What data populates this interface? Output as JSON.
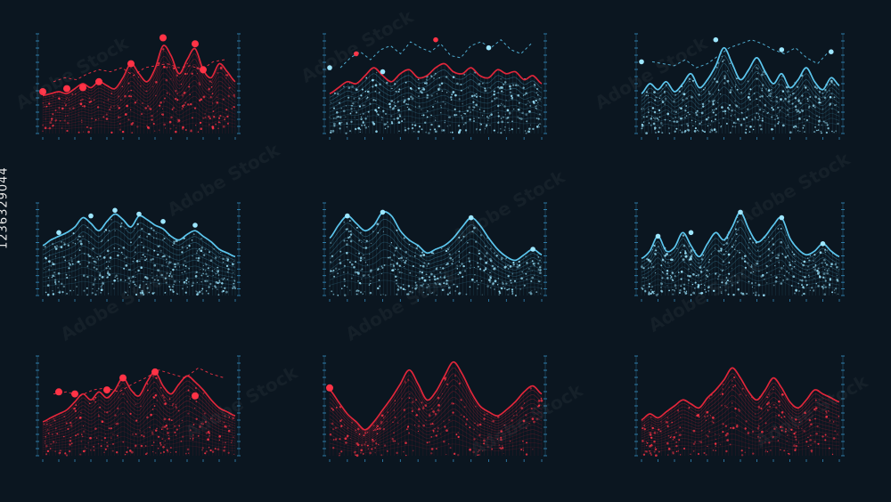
{
  "stock_id": "1236329044",
  "watermark_text": "Adobe Stock",
  "colors": {
    "background": "#0b1620",
    "red": "#e0263a",
    "red_dot": "#ff3346",
    "blue": "#5cc6ee",
    "blue_dot": "#9de6ff",
    "axis": "#3a9ad0"
  },
  "chart_data": [
    {
      "type": "area",
      "color": "red",
      "x": [
        0,
        1,
        2,
        3,
        4,
        5,
        6,
        7,
        8,
        9,
        10,
        11,
        12,
        13,
        14,
        15,
        16,
        17,
        18,
        19,
        20,
        21,
        22,
        23,
        24
      ],
      "values": [
        3.8,
        4.0,
        4.2,
        4.0,
        4.5,
        5.0,
        4.6,
        5.2,
        4.8,
        4.5,
        5.6,
        7.0,
        6.0,
        5.2,
        6.5,
        8.8,
        7.8,
        6.0,
        7.4,
        8.5,
        6.4,
        5.6,
        7.0,
        6.2,
        5.2
      ],
      "overlay_line": [
        5.2,
        5.6,
        5.4,
        6.0,
        6.4,
        6.2,
        6.6,
        5.8,
        6.6,
        6.8,
        7.0,
        6.6,
        6.8,
        6.4,
        7.2,
        7.4
      ],
      "markers": [
        [
          0,
          4.2
        ],
        [
          3,
          4.5
        ],
        [
          5,
          4.6
        ],
        [
          7,
          5.2
        ],
        [
          11,
          7.0
        ],
        [
          15,
          9.6
        ],
        [
          19,
          9.0
        ],
        [
          20,
          6.4
        ]
      ],
      "ylim": [
        0,
        10
      ]
    },
    {
      "type": "area",
      "color": "blue",
      "accent": "red",
      "x": [
        0,
        1,
        2,
        3,
        4,
        5,
        6,
        7,
        8,
        9,
        10,
        11,
        12,
        13,
        14,
        15,
        16,
        17,
        18,
        19,
        20,
        21,
        22,
        23,
        24
      ],
      "values": [
        4.0,
        4.6,
        5.2,
        5.0,
        5.8,
        6.6,
        5.8,
        5.2,
        6.0,
        6.4,
        5.6,
        5.8,
        6.6,
        7.0,
        6.2,
        6.0,
        6.6,
        5.8,
        5.6,
        6.4,
        6.0,
        6.2,
        5.4,
        5.8,
        5.0
      ],
      "overlay_line": [
        6.6,
        7.6,
        8.2,
        7.4,
        8.4,
        8.8,
        8.0,
        9.2,
        8.6,
        8.2,
        9.0,
        7.8,
        7.6,
        8.8,
        9.2,
        8.6,
        9.4,
        8.4,
        8.0,
        9.0
      ],
      "markers": [
        [
          0,
          6.6
        ],
        [
          3,
          8.0
        ],
        [
          6,
          6.2
        ],
        [
          12,
          9.4
        ],
        [
          18,
          8.6
        ]
      ],
      "ylim": [
        0,
        10
      ]
    },
    {
      "type": "area",
      "color": "blue",
      "x": [
        0,
        1,
        2,
        3,
        4,
        5,
        6,
        7,
        8,
        9,
        10,
        11,
        12,
        13,
        14,
        15,
        16,
        17,
        18,
        19,
        20,
        21,
        22,
        23,
        24
      ],
      "values": [
        4.0,
        5.0,
        4.4,
        5.2,
        4.2,
        5.0,
        6.0,
        4.6,
        5.4,
        6.8,
        8.6,
        7.0,
        5.4,
        6.4,
        7.6,
        6.2,
        5.0,
        6.0,
        4.6,
        5.4,
        6.6,
        5.2,
        4.4,
        5.6,
        4.8
      ],
      "overlay_line": [
        7.2,
        7.0,
        6.8,
        7.4,
        6.6,
        7.0,
        7.8,
        8.6,
        9.0,
        9.4,
        9.0,
        8.4,
        8.0,
        8.6,
        7.6,
        7.0,
        8.2
      ],
      "markers": [
        [
          0,
          7.2
        ],
        [
          9,
          9.4
        ],
        [
          17,
          8.4
        ],
        [
          23,
          8.2
        ]
      ],
      "ylim": [
        0,
        10
      ]
    },
    {
      "type": "area",
      "color": "blue",
      "x": [
        0,
        1,
        2,
        3,
        4,
        5,
        6,
        7,
        8,
        9,
        10,
        11,
        12,
        13,
        14,
        15,
        16,
        17,
        18,
        19,
        20,
        21,
        22,
        23,
        24
      ],
      "values": [
        5.4,
        6.0,
        6.4,
        6.8,
        7.4,
        8.4,
        7.8,
        7.0,
        8.0,
        8.8,
        8.2,
        7.4,
        8.6,
        8.2,
        7.6,
        7.2,
        6.4,
        6.0,
        6.6,
        7.0,
        6.4,
        5.8,
        5.0,
        4.6,
        4.2
      ],
      "markers": [
        [
          2,
          6.8
        ],
        [
          6,
          8.6
        ],
        [
          9,
          9.2
        ],
        [
          12,
          8.8
        ],
        [
          15,
          8.0
        ],
        [
          19,
          7.6
        ]
      ],
      "ylim": [
        0,
        10
      ]
    },
    {
      "type": "area",
      "color": "blue",
      "x": [
        0,
        1,
        2,
        3,
        4,
        5,
        6,
        7,
        8,
        9,
        10,
        11,
        12,
        13,
        14,
        15,
        16,
        17,
        18,
        19,
        20,
        21,
        22,
        23,
        24
      ],
      "values": [
        6.2,
        7.6,
        8.6,
        7.8,
        7.0,
        7.6,
        9.0,
        8.6,
        7.0,
        6.0,
        5.4,
        4.6,
        5.0,
        5.4,
        6.2,
        7.4,
        8.4,
        7.6,
        6.2,
        5.0,
        4.2,
        3.8,
        4.4,
        5.0,
        4.4
      ],
      "markers": [
        [
          2,
          8.6
        ],
        [
          6,
          9.0
        ],
        [
          16,
          8.4
        ],
        [
          23,
          5.0
        ]
      ],
      "ylim": [
        0,
        10
      ]
    },
    {
      "type": "area",
      "color": "blue",
      "x": [
        0,
        1,
        2,
        3,
        4,
        5,
        6,
        7,
        8,
        9,
        10,
        11,
        12,
        13,
        14,
        15,
        16,
        17,
        18,
        19,
        20,
        21,
        22,
        23,
        24
      ],
      "values": [
        4.0,
        4.8,
        6.4,
        4.8,
        5.2,
        6.8,
        5.4,
        4.2,
        5.6,
        6.8,
        6.0,
        7.4,
        9.0,
        7.2,
        5.8,
        6.4,
        7.6,
        8.4,
        6.2,
        5.0,
        4.4,
        4.8,
        5.6,
        4.8,
        4.2
      ],
      "markers": [
        [
          2,
          6.4
        ],
        [
          6,
          6.8
        ],
        [
          12,
          9.0
        ],
        [
          17,
          8.4
        ],
        [
          22,
          5.6
        ]
      ],
      "ylim": [
        0,
        10
      ]
    },
    {
      "type": "area",
      "color": "red",
      "x": [
        0,
        1,
        2,
        3,
        4,
        5,
        6,
        7,
        8,
        9,
        10,
        11,
        12,
        13,
        14,
        15,
        16,
        17,
        18,
        19,
        20,
        21,
        22,
        23,
        24
      ],
      "values": [
        3.4,
        3.8,
        4.2,
        4.6,
        5.4,
        6.2,
        5.6,
        6.4,
        5.8,
        6.6,
        7.8,
        6.6,
        6.0,
        7.4,
        8.4,
        7.0,
        6.2,
        7.2,
        8.0,
        7.4,
        6.6,
        5.6,
        4.8,
        4.4,
        4.0
      ],
      "overlay_line": [
        6.2,
        6.4,
        6.0,
        6.6,
        6.8,
        6.4,
        7.2,
        7.8,
        8.6,
        8.2,
        7.8,
        8.8,
        8.2,
        7.8
      ],
      "markers": [
        [
          2,
          6.4
        ],
        [
          4,
          6.2
        ],
        [
          8,
          6.6
        ],
        [
          10,
          7.8
        ],
        [
          14,
          8.4
        ],
        [
          19,
          6.0
        ]
      ],
      "ylim": [
        0,
        10
      ]
    },
    {
      "type": "area",
      "color": "red",
      "x": [
        0,
        1,
        2,
        3,
        4,
        5,
        6,
        7,
        8,
        9,
        10,
        11,
        12,
        13,
        14,
        15,
        16,
        17,
        18,
        19,
        20,
        21,
        22,
        23,
        24
      ],
      "values": [
        6.6,
        5.4,
        4.2,
        3.4,
        2.6,
        3.4,
        4.6,
        5.8,
        7.2,
        8.6,
        7.2,
        5.6,
        6.4,
        8.0,
        9.4,
        8.2,
        6.4,
        5.0,
        4.4,
        4.0,
        4.6,
        5.4,
        6.4,
        7.0,
        6.2
      ],
      "markers": [
        [
          0,
          6.8
        ]
      ],
      "ylim": [
        0,
        10
      ]
    },
    {
      "type": "area",
      "color": "red",
      "x": [
        0,
        1,
        2,
        3,
        4,
        5,
        6,
        7,
        8,
        9,
        10,
        11,
        12,
        13,
        14,
        15,
        16,
        17,
        18,
        19,
        20,
        21,
        22,
        23,
        24
      ],
      "values": [
        3.6,
        4.2,
        3.8,
        4.4,
        5.0,
        5.6,
        5.2,
        4.8,
        5.8,
        6.6,
        7.6,
        8.8,
        7.8,
        6.4,
        5.6,
        6.6,
        7.8,
        6.8,
        5.4,
        4.8,
        5.6,
        6.6,
        6.2,
        5.8,
        5.4
      ],
      "ylim": [
        0,
        10
      ]
    }
  ]
}
